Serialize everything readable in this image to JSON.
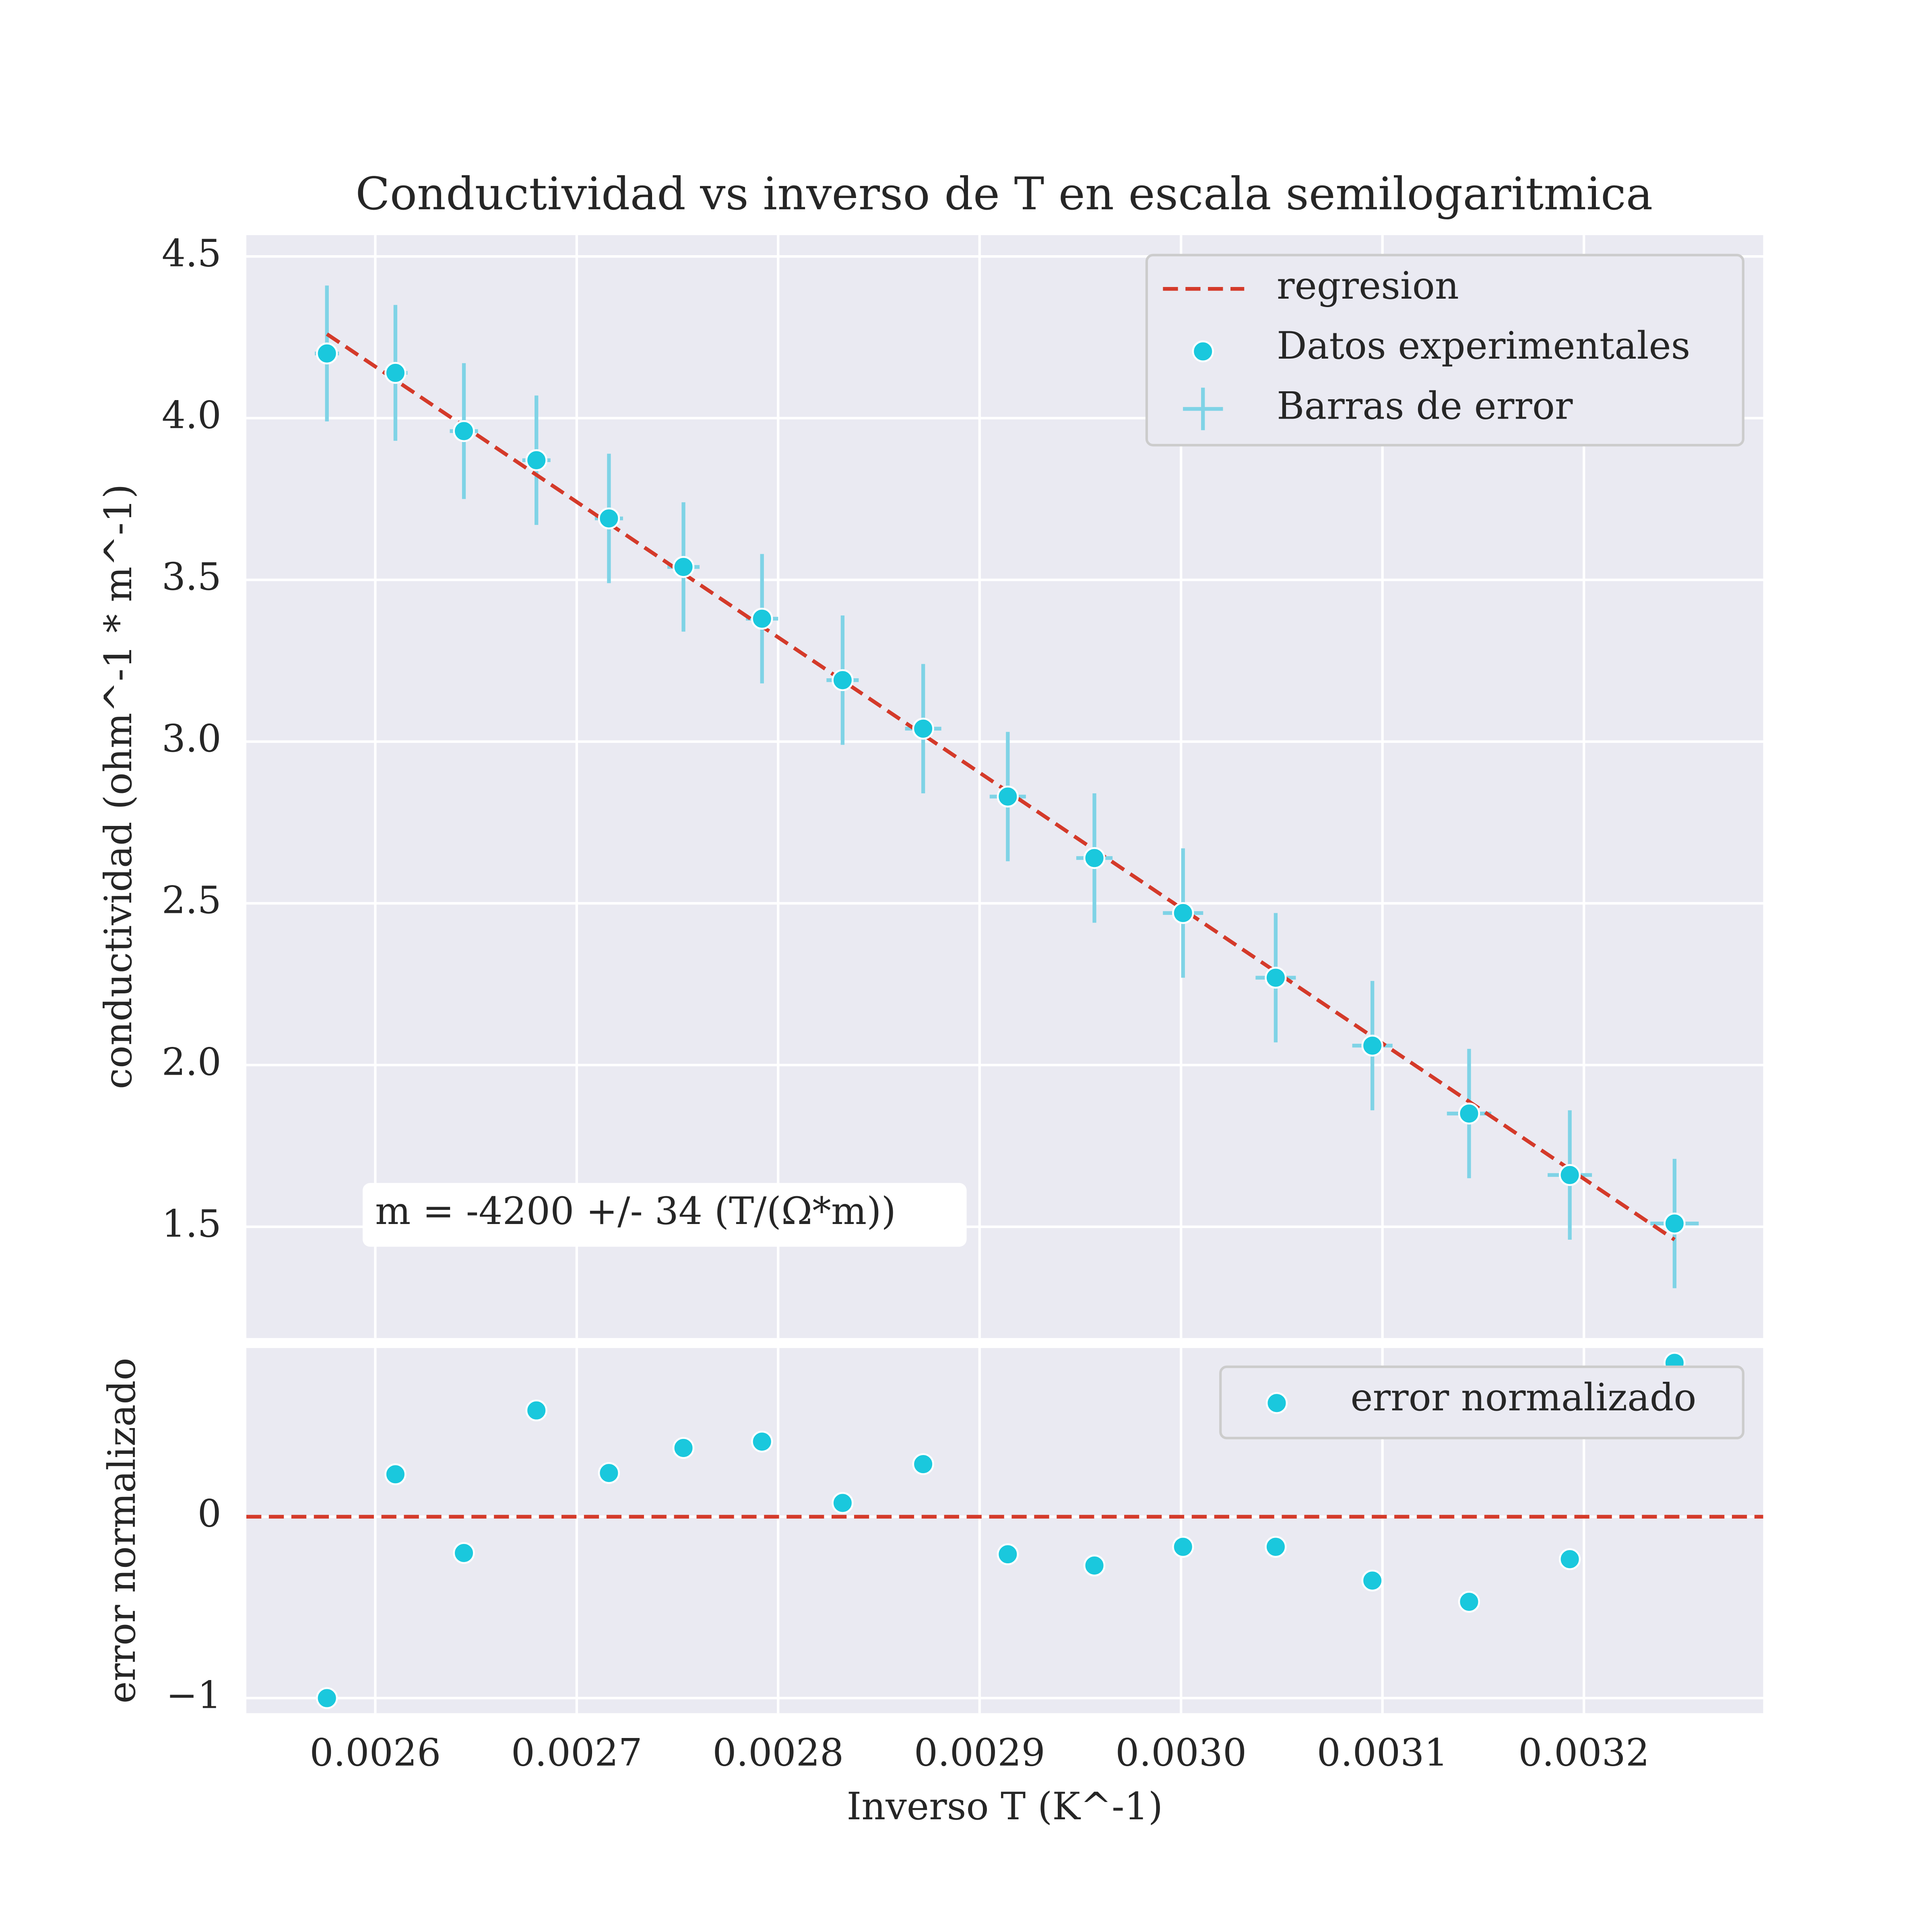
{
  "chart_data": [
    {
      "type": "scatter",
      "title": "Conductividad vs inverso de T en escala semilogaritmica",
      "ylabel": "conductividad (ohm^-1 * m^-1)",
      "xlim": [
        0.002536,
        0.003289
      ],
      "ylim": [
        1.156,
        4.566
      ],
      "yticks": [
        1.5,
        {
          "value": 2,
          "label": "2.0"
        },
        2.5,
        {
          "value": 3,
          "label": "3.0"
        },
        3.5,
        {
          "value": 4,
          "label": "4.0"
        },
        4.5
      ],
      "grid": true,
      "legend": "upper right",
      "regression": {
        "name": "regresion",
        "color": "#d43a2a",
        "x": [
          0.002576,
          0.003245
        ],
        "y": [
          4.26,
          1.46
        ]
      },
      "series": [
        {
          "name": "Datos experimentales",
          "color": "#1ac8dd",
          "error_name": "Barras de error",
          "error_color": "#7fd3e6",
          "x": [
            0.002576,
            0.00261,
            0.002644,
            0.00268,
            0.002716,
            0.002753,
            0.002792,
            0.002832,
            0.002872,
            0.002914,
            0.002957,
            0.003001,
            0.003047,
            0.003095,
            0.003143,
            0.003193,
            0.003245
          ],
          "y": [
            4.2,
            4.14,
            3.96,
            3.87,
            3.69,
            3.54,
            3.38,
            3.19,
            3.04,
            2.83,
            2.64,
            2.47,
            2.27,
            2.06,
            1.85,
            1.66,
            1.51
          ],
          "yerr": [
            0.21,
            0.21,
            0.21,
            0.2,
            0.2,
            0.2,
            0.2,
            0.2,
            0.2,
            0.2,
            0.2,
            0.2,
            0.2,
            0.2,
            0.2,
            0.2,
            0.2
          ],
          "xerr": [
            6e-06,
            6e-06,
            7e-06,
            7e-06,
            7e-06,
            8e-06,
            8e-06,
            8e-06,
            9e-06,
            9e-06,
            9e-06,
            1e-05,
            1e-05,
            1e-05,
            1.1e-05,
            1.1e-05,
            1.2e-05
          ]
        }
      ],
      "annotation": "m = -4200 +/- 34 (T/(Ω*m))"
    },
    {
      "type": "scatter",
      "xlabel": "Inverso T (K^-1)",
      "ylabel": "error normalizado",
      "xlim": [
        0.002536,
        0.003289
      ],
      "ylim": [
        -1.083,
        0.93
      ],
      "xticks": [
        0.0026,
        0.0027,
        0.0028,
        0.0029,
        {
          "value": 0.003,
          "label": "0.0030"
        },
        0.0031,
        0.0032
      ],
      "yticks": [
        {
          "value": -1,
          "label": "−1"
        },
        0
      ],
      "grid": true,
      "legend": "upper right",
      "hline": {
        "value": 0,
        "color": "#d43a2a"
      },
      "series": [
        {
          "name": "error normalizado",
          "color": "#1ac8dd",
          "x": [
            0.002576,
            0.00261,
            0.002644,
            0.00268,
            0.002716,
            0.002753,
            0.002792,
            0.002832,
            0.002872,
            0.002914,
            0.002957,
            0.003001,
            0.003047,
            0.003095,
            0.003143,
            0.003193,
            0.003245
          ],
          "y": [
            -1.0,
            0.234,
            -0.2,
            0.586,
            0.241,
            0.379,
            0.414,
            0.076,
            0.29,
            -0.207,
            -0.269,
            -0.166,
            -0.166,
            -0.352,
            -0.469,
            -0.234,
            0.848
          ]
        }
      ]
    }
  ]
}
